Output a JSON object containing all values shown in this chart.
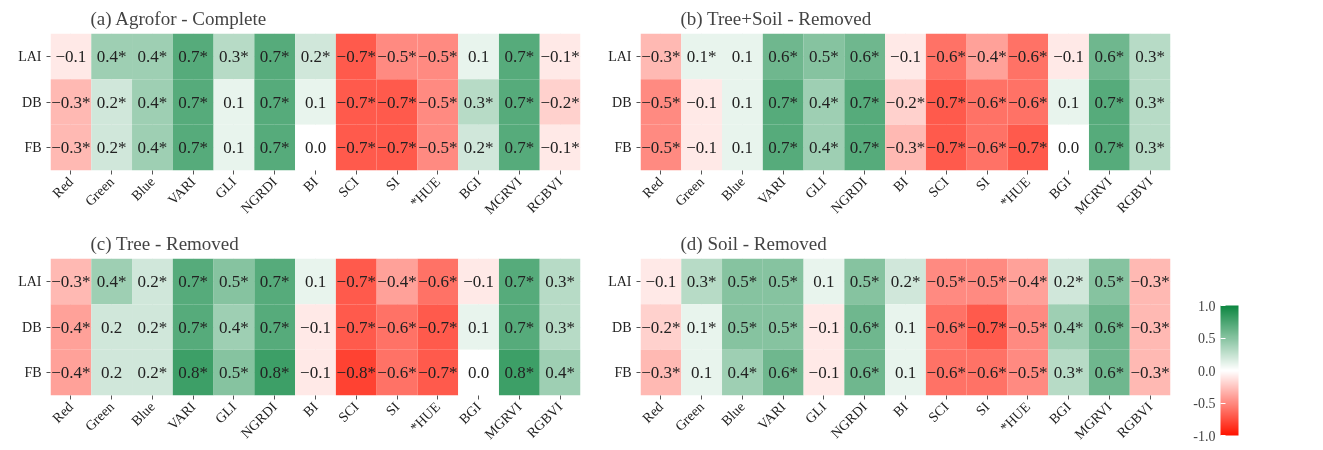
{
  "chart_data": [
    {
      "type": "heatmap",
      "title": "(a) Agrofor - Complete",
      "categories": [
        "Red",
        "Green",
        "Blue",
        "VARI",
        "GLI",
        "NGRDI",
        "BI",
        "SCI",
        "SI",
        "*HUE",
        "BGI",
        "MGRVI",
        "RGBVI"
      ],
      "y_categories": [
        "LAI",
        "DB",
        "FB"
      ],
      "cells": [
        [
          -0.1,
          0.4,
          0.4,
          0.7,
          0.3,
          0.7,
          0.2,
          -0.7,
          -0.5,
          -0.5,
          0.1,
          0.7,
          -0.1
        ],
        [
          -0.3,
          0.2,
          0.4,
          0.7,
          0.1,
          0.7,
          0.1,
          -0.7,
          -0.7,
          -0.5,
          0.3,
          0.7,
          -0.2
        ],
        [
          -0.3,
          0.2,
          0.4,
          0.7,
          0.1,
          0.7,
          0.0,
          -0.7,
          -0.7,
          -0.5,
          0.2,
          0.7,
          -0.1
        ]
      ],
      "cell_labels": [
        [
          "−0.1",
          "0.4*",
          "0.4*",
          "0.7*",
          "0.3*",
          "0.7*",
          "0.2*",
          "−0.7*",
          "−0.5*",
          "−0.5*",
          "0.1",
          "0.7*",
          "−0.1*"
        ],
        [
          "−0.3*",
          "0.2*",
          "0.4*",
          "0.7*",
          "0.1",
          "0.7*",
          "0.1",
          "−0.7*",
          "−0.7*",
          "−0.5*",
          "0.3*",
          "0.7*",
          "−0.2*"
        ],
        [
          "−0.3*",
          "0.2*",
          "0.4*",
          "0.7*",
          "0.1",
          "0.7*",
          "0.0",
          "−0.7*",
          "−0.7*",
          "−0.5*",
          "0.2*",
          "0.7*",
          "−0.1*"
        ]
      ],
      "grid": true
    },
    {
      "type": "heatmap",
      "title": "(b) Tree+Soil - Removed",
      "categories": [
        "Red",
        "Green",
        "Blue",
        "VARI",
        "GLI",
        "NGRDI",
        "BI",
        "SCI",
        "SI",
        "*HUE",
        "BGI",
        "MGRVI",
        "RGBVI"
      ],
      "y_categories": [
        "LAI",
        "DB",
        "FB"
      ],
      "cells": [
        [
          -0.3,
          0.1,
          0.1,
          0.6,
          0.5,
          0.6,
          -0.1,
          -0.6,
          -0.4,
          -0.6,
          -0.1,
          0.6,
          0.3
        ],
        [
          -0.5,
          -0.1,
          0.1,
          0.7,
          0.4,
          0.7,
          -0.2,
          -0.7,
          -0.6,
          -0.6,
          0.1,
          0.7,
          0.3
        ],
        [
          -0.5,
          -0.1,
          0.1,
          0.7,
          0.4,
          0.7,
          -0.3,
          -0.7,
          -0.6,
          -0.7,
          0.0,
          0.7,
          0.3
        ]
      ],
      "cell_labels": [
        [
          "−0.3*",
          "0.1*",
          "0.1",
          "0.6*",
          "0.5*",
          "0.6*",
          "−0.1",
          "−0.6*",
          "−0.4*",
          "−0.6*",
          "−0.1",
          "0.6*",
          "0.3*"
        ],
        [
          "−0.5*",
          "−0.1",
          "0.1",
          "0.7*",
          "0.4*",
          "0.7*",
          "−0.2*",
          "−0.7*",
          "−0.6*",
          "−0.6*",
          "0.1",
          "0.7*",
          "0.3*"
        ],
        [
          "−0.5*",
          "−0.1",
          "0.1",
          "0.7*",
          "0.4*",
          "0.7*",
          "−0.3*",
          "−0.7*",
          "−0.6*",
          "−0.7*",
          "0.0",
          "0.7*",
          "0.3*"
        ]
      ],
      "clim": [
        -1.0,
        1.0
      ],
      "cticks": [
        {
          "value": -1.0,
          "label": "-1.0"
        },
        {
          "value": -0.5,
          "label": "-0.5"
        },
        {
          "value": 0.0,
          "label": "0.0"
        },
        {
          "value": 0.5,
          "label": "0.5"
        },
        {
          "value": 1.0,
          "label": "1.0"
        }
      ],
      "grid": true
    },
    {
      "type": "heatmap",
      "title": "(c) Tree - Removed",
      "categories": [
        "Red",
        "Green",
        "Blue",
        "VARI",
        "GLI",
        "NGRDI",
        "BI",
        "SCI",
        "SI",
        "*HUE",
        "BGI",
        "MGRVI",
        "RGBVI"
      ],
      "y_categories": [
        "LAI",
        "DB",
        "FB"
      ],
      "cells": [
        [
          -0.3,
          0.4,
          0.2,
          0.7,
          0.5,
          0.7,
          0.1,
          -0.7,
          -0.4,
          -0.6,
          -0.1,
          0.7,
          0.3
        ],
        [
          -0.4,
          0.2,
          0.2,
          0.7,
          0.4,
          0.7,
          -0.1,
          -0.7,
          -0.6,
          -0.7,
          0.1,
          0.7,
          0.3
        ],
        [
          -0.4,
          0.2,
          0.2,
          0.8,
          0.5,
          0.8,
          -0.1,
          -0.8,
          -0.6,
          -0.7,
          0.0,
          0.8,
          0.4
        ]
      ],
      "cell_labels": [
        [
          "−0.3*",
          "0.4*",
          "0.2*",
          "0.7*",
          "0.5*",
          "0.7*",
          "0.1",
          "−0.7*",
          "−0.4*",
          "−0.6*",
          "−0.1",
          "0.7*",
          "0.3*"
        ],
        [
          "−0.4*",
          "0.2",
          "0.2*",
          "0.7*",
          "0.4*",
          "0.7*",
          "−0.1",
          "−0.7*",
          "−0.6*",
          "−0.7*",
          "0.1",
          "0.7*",
          "0.3*"
        ],
        [
          "−0.4*",
          "0.2",
          "0.2*",
          "0.8*",
          "0.5*",
          "0.8*",
          "−0.1",
          "−0.8*",
          "−0.6*",
          "−0.7*",
          "0.0",
          "0.8*",
          "0.4*"
        ]
      ],
      "grid": true
    },
    {
      "type": "heatmap",
      "title": "(d) Soil - Removed",
      "categories": [
        "Red",
        "Green",
        "Blue",
        "VARI",
        "GLI",
        "NGRDI",
        "BI",
        "SCI",
        "SI",
        "*HUE",
        "BGI",
        "MGRVI",
        "RGBVI"
      ],
      "y_categories": [
        "LAI",
        "DB",
        "FB"
      ],
      "cells": [
        [
          -0.1,
          0.3,
          0.5,
          0.5,
          0.1,
          0.5,
          0.2,
          -0.5,
          -0.5,
          -0.4,
          0.2,
          0.5,
          -0.3
        ],
        [
          -0.2,
          0.1,
          0.5,
          0.5,
          -0.1,
          0.6,
          0.1,
          -0.6,
          -0.7,
          -0.5,
          0.4,
          0.6,
          -0.3
        ],
        [
          -0.3,
          0.1,
          0.4,
          0.6,
          -0.1,
          0.6,
          0.1,
          -0.6,
          -0.6,
          -0.5,
          0.3,
          0.6,
          -0.3
        ]
      ],
      "cell_labels": [
        [
          "−0.1",
          "0.3*",
          "0.5*",
          "0.5*",
          "0.1",
          "0.5*",
          "0.2*",
          "−0.5*",
          "−0.5*",
          "−0.4*",
          "0.2*",
          "0.5*",
          "−0.3*"
        ],
        [
          "−0.2*",
          "0.1*",
          "0.5*",
          "0.5*",
          "−0.1",
          "0.6*",
          "0.1",
          "−0.6*",
          "−0.7*",
          "−0.5*",
          "0.4*",
          "0.6*",
          "−0.3*"
        ],
        [
          "−0.3*",
          "0.1",
          "0.4*",
          "0.6*",
          "−0.1",
          "0.6*",
          "0.1",
          "−0.6*",
          "−0.6*",
          "−0.5*",
          "0.3*",
          "0.6*",
          "−0.3*"
        ]
      ],
      "grid": true
    }
  ]
}
